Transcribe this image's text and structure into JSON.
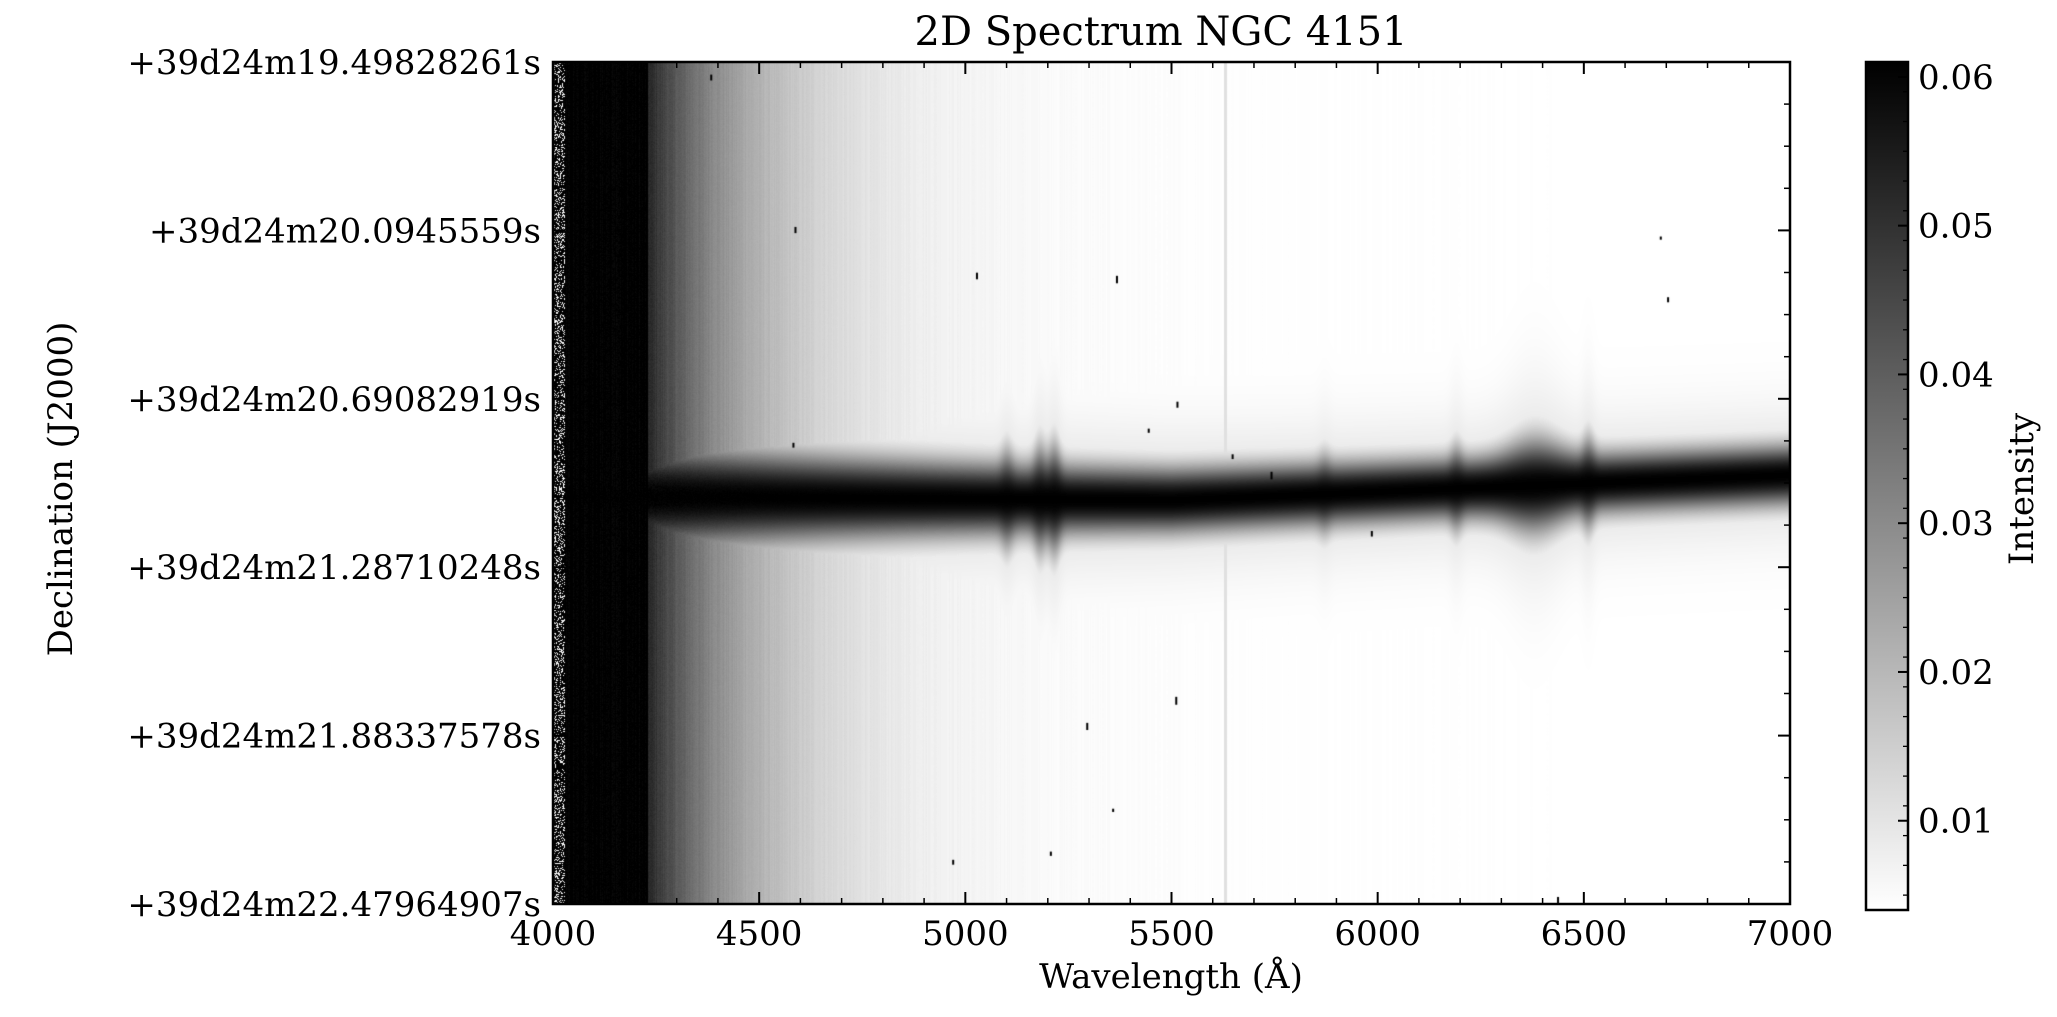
{
  "chart_data": {
    "type": "heatmap",
    "title": "2D Spectrum NGC 4151",
    "xlabel": "Wavelength (Å)",
    "ylabel": "Declination (J2000)",
    "xlim": [
      4000,
      7000
    ],
    "x_ticks": [
      4000,
      4500,
      5000,
      5500,
      6000,
      6500,
      7000
    ],
    "x_tick_labels": [
      "4000",
      "4500",
      "5000",
      "5500",
      "6000",
      "6500",
      "7000"
    ],
    "y_tick_labels": [
      "+39d24m19.49828261s",
      "+39d24m20.0945559s",
      "+39d24m20.69082919s",
      "+39d24m21.28710248s",
      "+39d24m21.88337578s",
      "+39d24m22.47964907s"
    ],
    "y_range_fraction_top_to_bottom": [
      0,
      1
    ],
    "colorbar": {
      "label": "Intensity",
      "range": [
        0.004,
        0.061
      ],
      "ticks": [
        0.06,
        0.05,
        0.04,
        0.03,
        0.02,
        0.01
      ],
      "tick_labels": [
        "0.06",
        "0.05",
        "0.04",
        "0.03",
        "0.02",
        "0.01"
      ],
      "colormap": "gray_r",
      "low_color": "#ffffff",
      "high_color": "#000000"
    },
    "trace": {
      "description_free_params": true,
      "center_fraction": [
        [
          4000,
          0.515
        ],
        [
          5500,
          0.52
        ],
        [
          7000,
          0.49
        ]
      ],
      "emission_lines": [
        {
          "wavelength": 5100,
          "strength": 0.6
        },
        {
          "wavelength": 5180,
          "strength": 0.9
        },
        {
          "wavelength": 5215,
          "strength": 1.0
        },
        {
          "wavelength": 5870,
          "strength": 0.3
        },
        {
          "wavelength": 6190,
          "strength": 0.5
        },
        {
          "wavelength": 6380,
          "strength": 1.0
        },
        {
          "wavelength": 6510,
          "strength": 0.7
        }
      ]
    },
    "sky_line_wavelength": 5630
  }
}
